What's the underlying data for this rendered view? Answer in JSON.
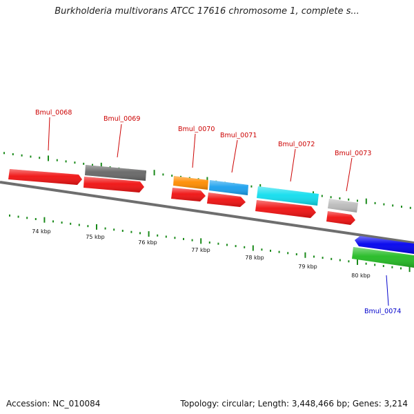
{
  "title": "Burkholderia multivorans ATCC 17616 chromosome 1, complete s...",
  "footer": {
    "accession": "Accession: NC_010084",
    "topology": "Topology: circular; Length: 3,448,466 bp; Genes: 3,214"
  },
  "colors": {
    "label_red": "#cc0000",
    "label_blue": "#0000cc",
    "tick_green": "#1a8a1a",
    "backbone": "#888888"
  },
  "tick_labels": [
    "74 kbp",
    "75 kbp",
    "76 kbp",
    "77 kbp",
    "78 kbp",
    "79 kbp",
    "80 kbp"
  ],
  "gene_labels": [
    {
      "text": "Bmul_0068",
      "color": "#cc0000"
    },
    {
      "text": "Bmul_0069",
      "color": "#cc0000"
    },
    {
      "text": "Bmul_0070",
      "color": "#cc0000"
    },
    {
      "text": "Bmul_0071",
      "color": "#cc0000"
    },
    {
      "text": "Bmul_0072",
      "color": "#cc0000"
    },
    {
      "text": "Bmul_0073",
      "color": "#cc0000"
    },
    {
      "text": "Bmul_0074",
      "color": "#0000cc"
    }
  ],
  "features": [
    {
      "name": "gene-arrow-0068",
      "color": "#f01010"
    },
    {
      "name": "cds-0069",
      "color": "#666666"
    },
    {
      "name": "gene-arrow-0069",
      "color": "#f01010"
    },
    {
      "name": "cds-0070",
      "color": "#ff8c00"
    },
    {
      "name": "gene-arrow-0070",
      "color": "#f01010"
    },
    {
      "name": "cds-0071",
      "color": "#1aa0ee"
    },
    {
      "name": "gene-arrow-0071",
      "color": "#f01010"
    },
    {
      "name": "cds-0072",
      "color": "#11ddee"
    },
    {
      "name": "gene-arrow-0072",
      "color": "#f01010"
    },
    {
      "name": "cds-0073",
      "color": "#bbbbbb"
    },
    {
      "name": "gene-arrow-0073",
      "color": "#f01010"
    },
    {
      "name": "gene-arrow-0074",
      "color": "#0000ee"
    },
    {
      "name": "cds-0074",
      "color": "#22bb22"
    }
  ]
}
